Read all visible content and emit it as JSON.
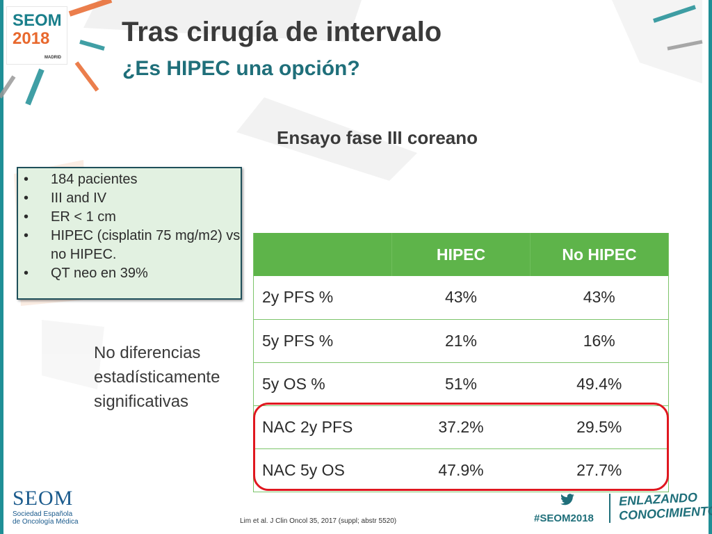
{
  "header": {
    "title": "Tras cirugía de intervalo",
    "subtitle": "¿Es HIPEC una opción?",
    "logo": {
      "name": "SEOM",
      "year": "2018",
      "city": "MADRID"
    }
  },
  "study_title": "Ensayo fase III coreano",
  "bullets": [
    "184 pacientes",
    "III and IV",
    "ER < 1 cm",
    "HIPEC (cisplatin 75 mg/m2) vs no HIPEC.",
    "QT neo en 39%"
  ],
  "note": "No diferencias estadísticamente significativas",
  "table": {
    "headers": [
      "",
      "HIPEC",
      "No HIPEC"
    ],
    "rows": [
      [
        "2y PFS %",
        "43%",
        "43%"
      ],
      [
        "5y PFS %",
        "21%",
        "16%"
      ],
      [
        "5y OS %",
        "51%",
        "49.4%"
      ],
      [
        "NAC 2y PFS",
        "37.2%",
        "29.5%"
      ],
      [
        "NAC 5y OS",
        "47.9%",
        "27.7%"
      ]
    ]
  },
  "footer": {
    "org_name": "SEOM",
    "org_sub_line1": "Sociedad Española",
    "org_sub_line2": "de Oncología Médica",
    "citation": "Lim et al. J Clin Oncol 35, 2017 (suppl; abstr 5520)",
    "hashtag": "#SEOM2018",
    "slogan_line1": "ENLAZANDO",
    "slogan_line2": "CONOCIMIENTO"
  },
  "colors": {
    "teal": "#1f8f96",
    "green_header": "#5eb44a",
    "highlight_red": "#e0171f",
    "box_bg": "#e2f1e1"
  }
}
